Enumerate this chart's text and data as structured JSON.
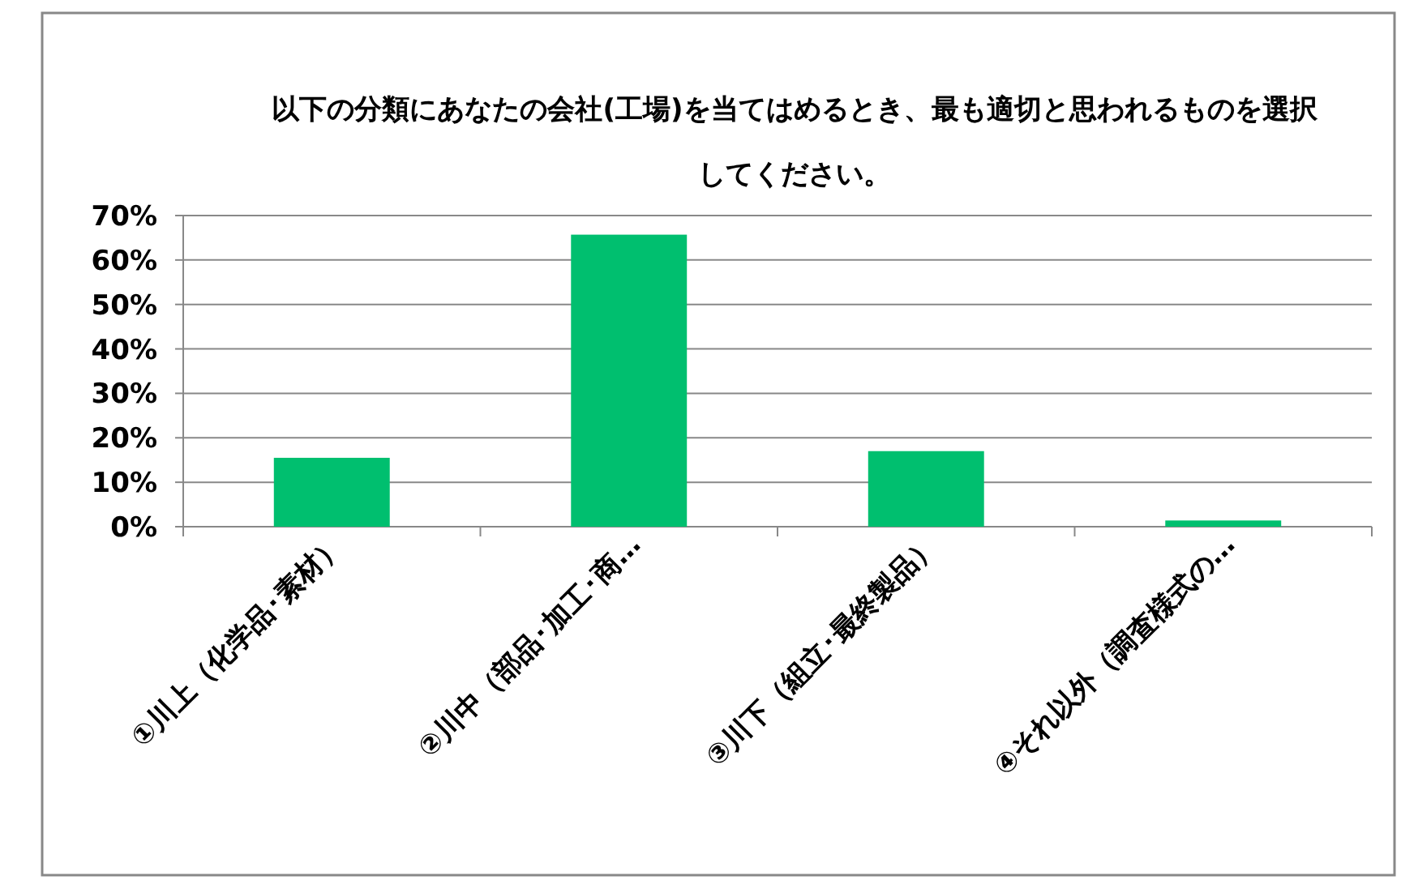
{
  "chart_data": {
    "type": "bar",
    "title": "以下の分類にあなたの会社(工場)を当てはめるとき、最も適切と思われるものを選択してください。",
    "categories": [
      "①川上（化学品･素材）",
      "②川中（部品･加工･商…",
      "③川下（組立･最終製品）",
      "④それ以外（調査様式の…"
    ],
    "values": [
      15.5,
      65.7,
      17.0,
      1.4
    ],
    "color": "#00bf6f",
    "ylim": [
      0,
      70
    ],
    "yticks": [
      {
        "value": 0,
        "label": "0%"
      },
      {
        "value": 10,
        "label": "10%"
      },
      {
        "value": 20,
        "label": "20%"
      },
      {
        "value": 30,
        "label": "30%"
      },
      {
        "value": 40,
        "label": "40%"
      },
      {
        "value": 50,
        "label": "50%"
      },
      {
        "value": 60,
        "label": "60%"
      },
      {
        "value": 70,
        "label": "70%"
      }
    ],
    "grid": "y"
  }
}
